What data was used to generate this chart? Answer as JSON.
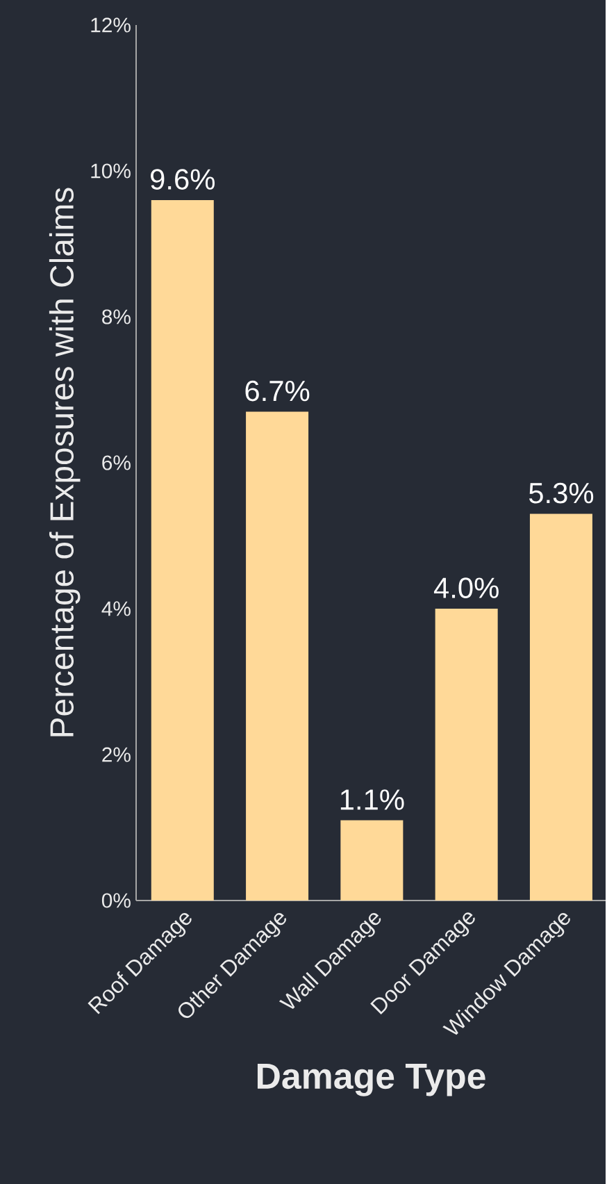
{
  "chart_data": {
    "type": "bar",
    "xlabel": "Damage Type",
    "ylabel": "Percentage of Exposures with Claims",
    "categories": [
      "Roof Damage",
      "Other Damage",
      "Wall Damage",
      "Door Damage",
      "Window Damage"
    ],
    "values": [
      9.6,
      6.7,
      1.1,
      4.0,
      5.3
    ],
    "value_labels": [
      "9.6%",
      "6.7%",
      "1.1%",
      "4.0%",
      "5.3%"
    ],
    "color": "#ffd998",
    "ylim": [
      0,
      12
    ],
    "yticks": [
      {
        "value": 0,
        "label": "0%"
      },
      {
        "value": 2,
        "label": "2%"
      },
      {
        "value": 4,
        "label": "4%"
      },
      {
        "value": 6,
        "label": "6%"
      },
      {
        "value": 8,
        "label": "8%"
      },
      {
        "value": 10,
        "label": "10%"
      },
      {
        "value": 12,
        "label": "12%"
      }
    ],
    "grid": false
  }
}
